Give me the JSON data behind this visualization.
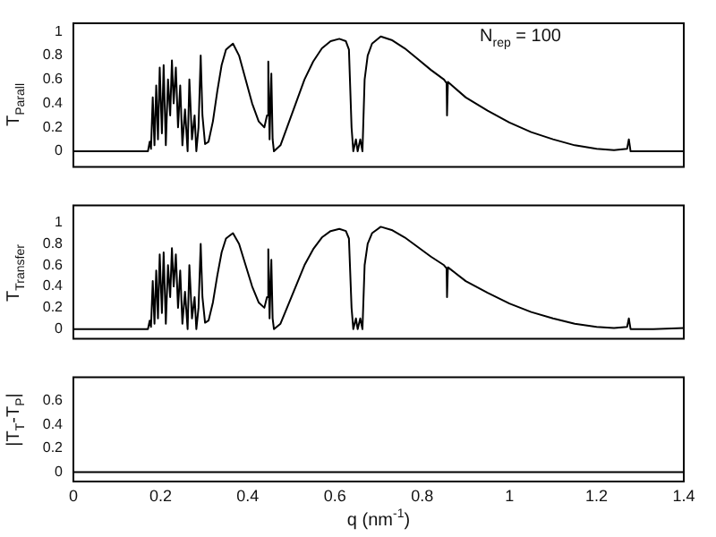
{
  "chart_data": [
    {
      "type": "line",
      "ylabel": "T$_{Parall}$",
      "annotations": [
        "N$_{rep}$ = 100"
      ],
      "xlim": [
        0,
        1.4
      ],
      "xticks": [
        0,
        0.2,
        0.4,
        0.6,
        0.8,
        1,
        1.2,
        1.4
      ],
      "ylim": [
        -0.13,
        1.07
      ],
      "yticks": [
        0,
        0.2,
        0.4,
        0.6,
        0.8,
        1
      ],
      "tick_labels": "y",
      "x": [
        0,
        0.171,
        0.175,
        0.178,
        0.182,
        0.186,
        0.19,
        0.194,
        0.198,
        0.203,
        0.207,
        0.212,
        0.217,
        0.222,
        0.226,
        0.23,
        0.235,
        0.24,
        0.245,
        0.25,
        0.256,
        0.262,
        0.266,
        0.272,
        0.278,
        0.282,
        0.287,
        0.292,
        0.296,
        0.302,
        0.31,
        0.32,
        0.33,
        0.34,
        0.35,
        0.366,
        0.38,
        0.395,
        0.41,
        0.425,
        0.438,
        0.444,
        0.447,
        0.45,
        0.454,
        0.457,
        0.46,
        0.475,
        0.49,
        0.51,
        0.53,
        0.55,
        0.57,
        0.59,
        0.61,
        0.625,
        0.632,
        0.638,
        0.642,
        0.648,
        0.652,
        0.658,
        0.663,
        0.668,
        0.675,
        0.685,
        0.705,
        0.73,
        0.76,
        0.79,
        0.82,
        0.85,
        0.856,
        0.857,
        0.859,
        0.9,
        0.95,
        1.0,
        1.05,
        1.1,
        1.15,
        1.2,
        1.24,
        1.27,
        1.274,
        1.278,
        1.33,
        1.4
      ],
      "series": [
        {
          "color": "#000000",
          "values": [
            0,
            0,
            0.08,
            0.02,
            0.45,
            0.05,
            0.55,
            0.1,
            0.7,
            0.15,
            0.72,
            0.05,
            0.6,
            0.3,
            0.76,
            0.4,
            0.7,
            0.2,
            0.55,
            0.05,
            0.35,
            0,
            0.6,
            0.1,
            0.3,
            0,
            0.2,
            0.8,
            0.3,
            0.06,
            0.08,
            0.25,
            0.5,
            0.72,
            0.85,
            0.9,
            0.8,
            0.6,
            0.4,
            0.25,
            0.2,
            0.3,
            0.75,
            0.1,
            0.65,
            0.1,
            0,
            0.05,
            0.2,
            0.4,
            0.6,
            0.75,
            0.86,
            0.92,
            0.94,
            0.92,
            0.85,
            0.2,
            0,
            0.1,
            0,
            0.1,
            0,
            0.6,
            0.8,
            0.9,
            0.96,
            0.93,
            0.86,
            0.77,
            0.68,
            0.6,
            0.57,
            0.3,
            0.58,
            0.45,
            0.34,
            0.24,
            0.16,
            0.1,
            0.05,
            0.02,
            0.01,
            0.02,
            0.1,
            0,
            0,
            0
          ]
        }
      ]
    },
    {
      "type": "line",
      "ylabel": "T$_{Transfer}$",
      "xlim": [
        0,
        1.4
      ],
      "xticks": [
        0,
        0.2,
        0.4,
        0.6,
        0.8,
        1,
        1.2,
        1.4
      ],
      "ylim": [
        -0.09,
        1.16
      ],
      "yticks": [
        0,
        0.2,
        0.4,
        0.6,
        0.8,
        1
      ],
      "tick_labels": "y",
      "x": [
        0,
        0.171,
        0.175,
        0.178,
        0.182,
        0.186,
        0.19,
        0.194,
        0.198,
        0.203,
        0.207,
        0.212,
        0.217,
        0.222,
        0.226,
        0.23,
        0.235,
        0.24,
        0.245,
        0.25,
        0.256,
        0.262,
        0.266,
        0.272,
        0.278,
        0.282,
        0.287,
        0.292,
        0.296,
        0.302,
        0.31,
        0.32,
        0.33,
        0.34,
        0.35,
        0.366,
        0.38,
        0.395,
        0.41,
        0.425,
        0.438,
        0.444,
        0.447,
        0.45,
        0.454,
        0.457,
        0.46,
        0.475,
        0.49,
        0.51,
        0.53,
        0.55,
        0.57,
        0.59,
        0.61,
        0.625,
        0.632,
        0.638,
        0.642,
        0.648,
        0.652,
        0.658,
        0.663,
        0.668,
        0.675,
        0.685,
        0.705,
        0.73,
        0.76,
        0.79,
        0.82,
        0.85,
        0.856,
        0.857,
        0.859,
        0.9,
        0.95,
        1.0,
        1.05,
        1.1,
        1.15,
        1.2,
        1.24,
        1.27,
        1.274,
        1.278,
        1.33,
        1.4
      ],
      "series": [
        {
          "color": "#000000",
          "values": [
            0,
            0,
            0.08,
            0.02,
            0.45,
            0.05,
            0.55,
            0.1,
            0.7,
            0.15,
            0.72,
            0.05,
            0.6,
            0.3,
            0.76,
            0.4,
            0.7,
            0.2,
            0.55,
            0.05,
            0.35,
            0,
            0.6,
            0.1,
            0.3,
            0,
            0.2,
            0.8,
            0.3,
            0.06,
            0.08,
            0.25,
            0.5,
            0.72,
            0.85,
            0.9,
            0.8,
            0.6,
            0.4,
            0.25,
            0.2,
            0.3,
            0.75,
            0.1,
            0.65,
            0.1,
            0,
            0.05,
            0.2,
            0.4,
            0.6,
            0.75,
            0.86,
            0.92,
            0.94,
            0.92,
            0.85,
            0.2,
            0,
            0.1,
            0,
            0.1,
            0,
            0.6,
            0.8,
            0.9,
            0.96,
            0.93,
            0.86,
            0.77,
            0.68,
            0.6,
            0.57,
            0.3,
            0.58,
            0.45,
            0.34,
            0.24,
            0.16,
            0.1,
            0.05,
            0.02,
            0.01,
            0.02,
            0.1,
            0,
            0,
            0.01
          ]
        }
      ]
    },
    {
      "type": "line",
      "ylabel": "|T$_{T}$-T$_{P}$|",
      "xlabel": "q (nm$^{-1}$)",
      "xlim": [
        0,
        1.4
      ],
      "xticks": [
        0,
        0.2,
        0.4,
        0.6,
        0.8,
        1,
        1.2,
        1.4
      ],
      "ylim": [
        -0.08,
        0.8
      ],
      "yticks": [
        0,
        0.2,
        0.4,
        0.6
      ],
      "x": [
        0,
        0.7,
        1.4
      ],
      "series": [
        {
          "color": "#000000",
          "values": [
            0,
            0,
            0
          ]
        }
      ]
    }
  ]
}
